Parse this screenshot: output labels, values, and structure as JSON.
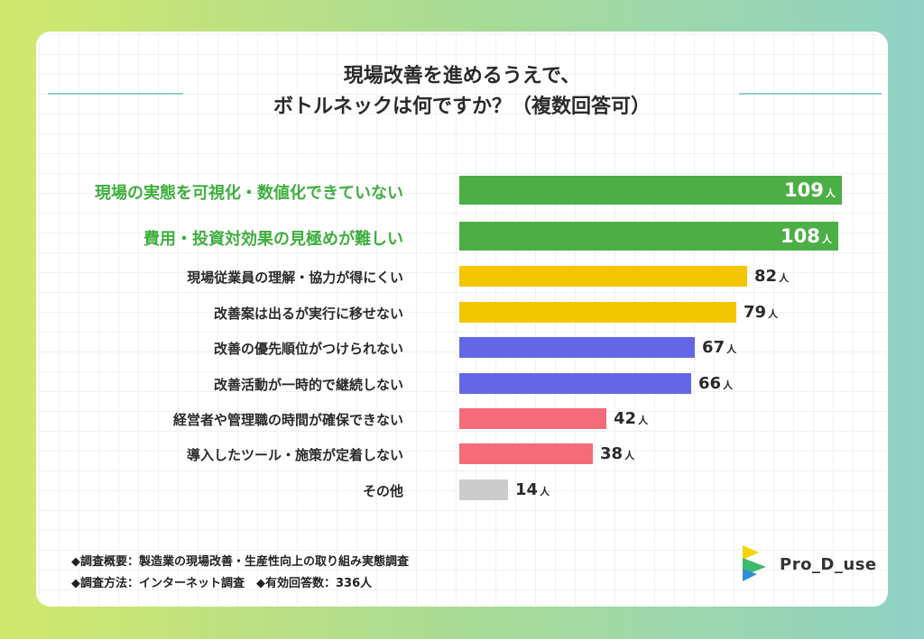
{
  "header": {
    "title_line1": "現場改善を進めるうえで、",
    "title_line2": "ボトルネックは何ですか？（複数回答可）"
  },
  "chart_data": {
    "type": "bar",
    "orientation": "horizontal",
    "unit": "人",
    "xlim": [
      0,
      109
    ],
    "categories": [
      "現場の実態を可視化・数値化できていない",
      "費用・投資対効果の見極めが難しい",
      "現場従業員の理解・協力が得にくい",
      "改善案は出るが実行に移せない",
      "改善の優先順位がつけられない",
      "改善活動が一時的で継続しない",
      "経営者や管理職の時間が確保できない",
      "導入したツール・施策が定着しない",
      "その他"
    ],
    "values": [
      109,
      108,
      82,
      79,
      67,
      66,
      42,
      38,
      14
    ],
    "colors": [
      "#4caf45",
      "#4caf45",
      "#f2c600",
      "#f2c600",
      "#6367e6",
      "#6367e6",
      "#f46b7a",
      "#f46b7a",
      "#cccccc"
    ],
    "highlight": [
      true,
      true,
      false,
      false,
      false,
      false,
      false,
      false,
      false
    ]
  },
  "footer": {
    "note1": "◆調査概要：製造業の現場改善・生産性向上の取り組み実態調査",
    "note2": "◆調査方法：インターネット調査　◆有効回答数：336人"
  },
  "brand": {
    "name": "Pro_D_use",
    "logo_icon": "prodeuse-logo-icon"
  }
}
